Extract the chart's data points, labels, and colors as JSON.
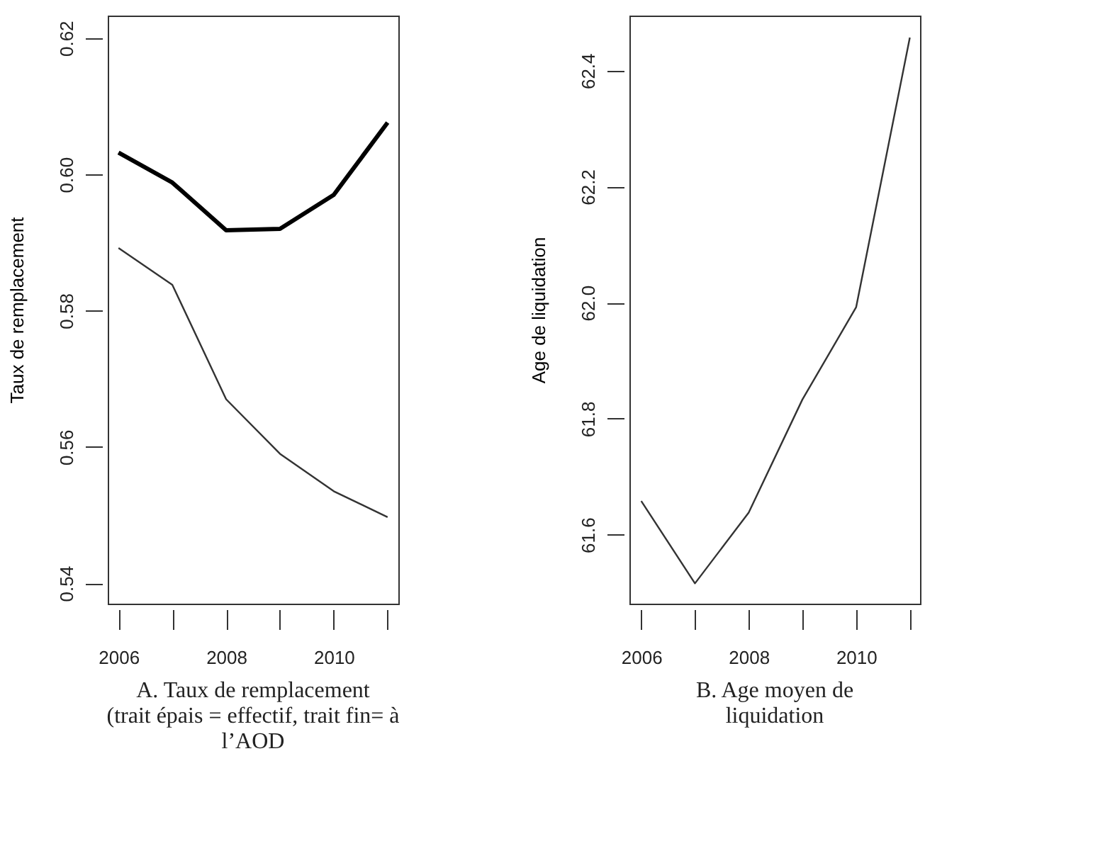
{
  "chart_data": [
    {
      "type": "line",
      "title": "A. Taux de remplacement\n(trait épais = effectif, trait fin= à\nl’AOD",
      "ylabel": "Taux de remplacement",
      "x": [
        2006,
        2007,
        2008,
        2009,
        2010,
        2011
      ],
      "series": [
        {
          "color": "#000000",
          "values": [
            0.6032,
            0.5988,
            0.5918,
            0.592,
            0.597,
            0.6076
          ]
        },
        {
          "color": "#333333",
          "values": [
            0.5892,
            0.5838,
            0.567,
            0.559,
            0.5535,
            0.5497
          ]
        }
      ],
      "xlim": [
        2005.8,
        2011.2
      ],
      "ylim": [
        0.537,
        0.6233
      ],
      "xticks": [
        2006,
        {
          "value": 2007,
          "label": null
        },
        2008,
        {
          "value": 2009,
          "label": null
        },
        2010,
        {
          "value": 2011,
          "label": null
        }
      ],
      "yticks": [
        0.54,
        0.56,
        0.58,
        {
          "value": 0.6,
          "label": "0.60"
        },
        0.62
      ],
      "grid": false
    },
    {
      "type": "line",
      "title": "B. Age moyen de\nliquidation",
      "ylabel": "Age de liquidation",
      "x": [
        2006,
        2007,
        2008,
        2009,
        2010,
        2011
      ],
      "series": [
        {
          "color": "#333333",
          "values": [
            61.658,
            61.516,
            61.638,
            61.833,
            61.992,
            62.457
          ]
        }
      ],
      "xlim": [
        2005.78,
        2011.19
      ],
      "ylim": [
        61.481,
        62.495
      ],
      "xticks": [
        2006,
        {
          "value": 2007,
          "label": null
        },
        2008,
        {
          "value": 2009,
          "label": null
        },
        2010,
        {
          "value": 2011,
          "label": null
        }
      ],
      "yticks": [
        61.6,
        61.8,
        {
          "value": 62,
          "label": "62.0"
        },
        62.2,
        62.4
      ],
      "grid": false
    }
  ]
}
